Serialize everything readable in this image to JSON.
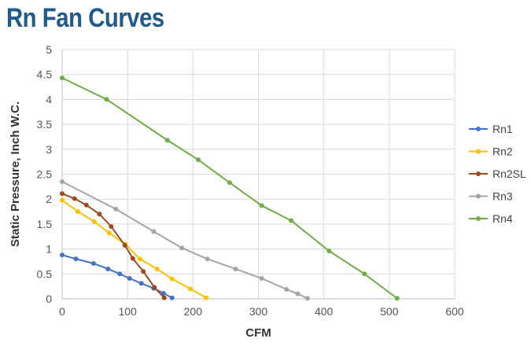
{
  "chart_data": {
    "type": "line",
    "title": "Rn Fan Curves",
    "xlabel": "CFM",
    "ylabel": "Static Pressure, Inch W.C.",
    "xlim": [
      0,
      600
    ],
    "ylim": [
      0,
      5
    ],
    "x_ticks": [
      0,
      100,
      200,
      300,
      400,
      500,
      600
    ],
    "y_ticks": [
      0,
      0.5,
      1,
      1.5,
      2,
      2.5,
      3,
      3.5,
      4,
      4.5,
      5
    ],
    "y_tick_labels": [
      "0",
      "0.5",
      "1",
      "1.5",
      "2",
      "2.5",
      "3",
      "3.5",
      "4",
      "4.5",
      "5"
    ],
    "grid": true,
    "legend_position": "right",
    "series": [
      {
        "name": "Rn1",
        "color": "#4472c4",
        "points": [
          [
            0,
            0.88
          ],
          [
            21,
            0.8
          ],
          [
            48,
            0.71
          ],
          [
            70,
            0.6
          ],
          [
            88,
            0.5
          ],
          [
            103,
            0.41
          ],
          [
            121,
            0.31
          ],
          [
            140,
            0.21
          ],
          [
            155,
            0.11
          ],
          [
            168,
            0.02
          ]
        ]
      },
      {
        "name": "Rn2",
        "color": "#ffc000",
        "points": [
          [
            0,
            1.98
          ],
          [
            24,
            1.75
          ],
          [
            49,
            1.55
          ],
          [
            72,
            1.32
          ],
          [
            96,
            1.1
          ],
          [
            119,
            0.8
          ],
          [
            145,
            0.6
          ],
          [
            168,
            0.4
          ],
          [
            196,
            0.2
          ],
          [
            220,
            0.02
          ]
        ]
      },
      {
        "name": "Rn2SL",
        "color": "#9e4a1e",
        "points": [
          [
            0,
            2.11
          ],
          [
            19,
            2.01
          ],
          [
            37,
            1.88
          ],
          [
            57,
            1.7
          ],
          [
            75,
            1.45
          ],
          [
            96,
            1.07
          ],
          [
            108,
            0.81
          ],
          [
            124,
            0.55
          ],
          [
            141,
            0.23
          ],
          [
            156,
            0.02
          ]
        ]
      },
      {
        "name": "Rn3",
        "color": "#a5a5a5",
        "points": [
          [
            0,
            2.35
          ],
          [
            82,
            1.8
          ],
          [
            140,
            1.35
          ],
          [
            183,
            1.02
          ],
          [
            222,
            0.8
          ],
          [
            265,
            0.6
          ],
          [
            305,
            0.41
          ],
          [
            343,
            0.19
          ],
          [
            360,
            0.1
          ],
          [
            375,
            0.01
          ]
        ]
      },
      {
        "name": "Rn4",
        "color": "#70ad47",
        "points": [
          [
            0,
            4.43
          ],
          [
            68,
            4.0
          ],
          [
            161,
            3.18
          ],
          [
            208,
            2.79
          ],
          [
            256,
            2.33
          ],
          [
            305,
            1.87
          ],
          [
            350,
            1.57
          ],
          [
            408,
            0.96
          ],
          [
            462,
            0.5
          ],
          [
            512,
            0.01
          ]
        ]
      }
    ]
  }
}
